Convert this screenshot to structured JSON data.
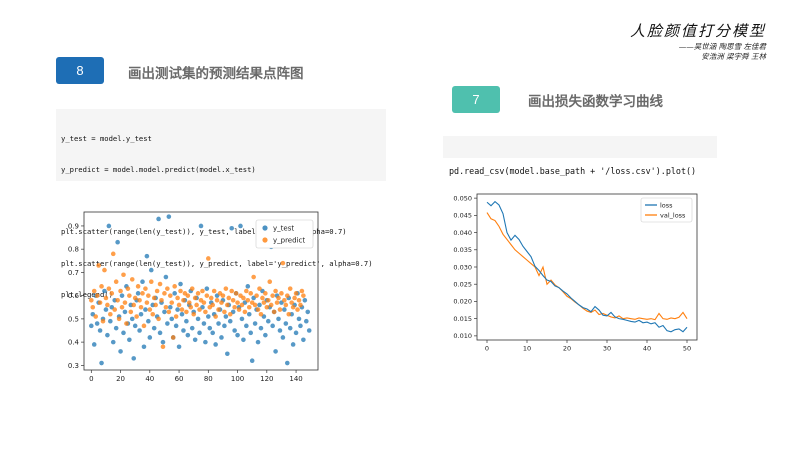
{
  "brand": {
    "title": "人脸颜值打分模型",
    "subtitle_line1": "——吴世涵 陶思雪 左佳君",
    "subtitle_line2": "安浩洲 梁宇舜 王林"
  },
  "section_scatter": {
    "number": "8",
    "title": "画出测试集的预测结果点阵图",
    "badge_color": "#1e6eb5",
    "code_lines": [
      "y_test = model.y_test",
      "y_predict = model.model.predict(model.x_test)",
      "",
      "plt.scatter(range(len(y_test)), y_test, label='y_test', alpha=0.7)",
      "plt.scatter(range(len(y_test)), y_predict, label='y_predict', alpha=0.7)",
      "plt.legend()"
    ]
  },
  "section_loss": {
    "number": "7",
    "title": "画出损失函数学习曲线",
    "badge_color": "#4fc0ae",
    "code_line": "pd.read_csv(model.base_path + '/loss.csv').plot()"
  },
  "chart_data": [
    {
      "type": "scatter",
      "title": "",
      "xlabel": "",
      "ylabel": "",
      "xlim": [
        -5,
        155
      ],
      "ylim": [
        0.28,
        0.96
      ],
      "x_ticks": [
        0,
        20,
        40,
        60,
        80,
        100,
        120,
        140
      ],
      "y_ticks": [
        0.3,
        0.4,
        0.5,
        0.6,
        0.7,
        0.8,
        0.9
      ],
      "legend_position": "top-right",
      "grid": false,
      "series": [
        {
          "name": "y_test",
          "color": "#1f77b4",
          "values": [
            0.47,
            0.52,
            0.39,
            0.6,
            0.48,
            0.57,
            0.45,
            0.31,
            0.5,
            0.62,
            0.54,
            0.43,
            0.9,
            0.49,
            0.55,
            0.4,
            0.58,
            0.46,
            0.83,
            0.51,
            0.36,
            0.6,
            0.44,
            0.53,
            0.64,
            0.48,
            0.41,
            0.56,
            0.5,
            0.33,
            0.47,
            0.58,
            0.61,
            0.45,
            0.52,
            0.66,
            0.38,
            0.54,
            0.77,
            0.49,
            0.42,
            0.71,
            0.56,
            0.46,
            0.59,
            0.51,
            0.93,
            0.44,
            0.57,
            0.4,
            0.53,
            0.68,
            0.48,
            0.94,
            0.55,
            0.5,
            0.42,
            0.61,
            0.47,
            0.54,
            0.38,
            0.65,
            0.52,
            0.45,
            0.58,
            0.49,
            0.43,
            0.56,
            0.62,
            0.46,
            0.53,
            0.41,
            0.59,
            0.5,
            0.44,
            0.9,
            0.55,
            0.48,
            0.4,
            0.63,
            0.51,
            0.46,
            0.57,
            0.44,
            0.52,
            0.39,
            0.6,
            0.48,
            0.54,
            0.42,
            0.58,
            0.47,
            0.51,
            0.35,
            0.56,
            0.49,
            0.89,
            0.53,
            0.45,
            0.61,
            0.43,
            0.55,
            0.9,
            0.5,
            0.41,
            0.57,
            0.47,
            0.64,
            0.52,
            0.44,
            0.32,
            0.59,
            0.48,
            0.54,
            0.4,
            0.56,
            0.46,
            0.62,
            0.51,
            0.43,
            0.58,
            0.49,
            0.55,
            0.81,
            0.47,
            0.53,
            0.36,
            0.6,
            0.5,
            0.45,
            0.57,
            0.42,
            0.54,
            0.48,
            0.31,
            0.59,
            0.46,
            0.52,
            0.39,
            0.56,
            0.44,
            0.61,
            0.5,
            0.47,
            0.55,
            0.41,
            0.58,
            0.49,
            0.53,
            0.45
          ]
        },
        {
          "name": "y_predict",
          "color": "#ff7f0e",
          "values": [
            0.58,
            0.55,
            0.62,
            0.51,
            0.6,
            0.73,
            0.57,
            0.64,
            0.49,
            0.71,
            0.59,
            0.56,
            0.63,
            0.52,
            0.61,
            0.78,
            0.54,
            0.66,
            0.58,
            0.5,
            0.62,
            0.55,
            0.69,
            0.57,
            0.48,
            0.63,
            0.6,
            0.53,
            0.67,
            0.56,
            0.59,
            0.51,
            0.64,
            0.58,
            0.55,
            0.61,
            0.47,
            0.63,
            0.57,
            0.6,
            0.54,
            0.66,
            0.52,
            0.59,
            0.56,
            0.62,
            0.5,
            0.65,
            0.58,
            0.38,
            0.61,
            0.55,
            0.63,
            0.53,
            0.6,
            0.57,
            0.42,
            0.64,
            0.51,
            0.59,
            0.56,
            0.62,
            0.54,
            0.58,
            0.61,
            0.53,
            0.6,
            0.57,
            0.55,
            0.63,
            0.52,
            0.59,
            0.56,
            0.61,
            0.54,
            0.58,
            0.62,
            0.57,
            0.53,
            0.6,
            0.76,
            0.55,
            0.59,
            0.56,
            0.62,
            0.51,
            0.58,
            0.54,
            0.61,
            0.57,
            0.6,
            0.53,
            0.63,
            0.56,
            0.59,
            0.52,
            0.62,
            0.58,
            0.55,
            0.61,
            0.57,
            0.54,
            0.6,
            0.56,
            0.59,
            0.53,
            0.62,
            0.58,
            0.55,
            0.61,
            0.57,
            0.68,
            0.56,
            0.6,
            0.54,
            0.63,
            0.52,
            0.59,
            0.57,
            0.61,
            0.55,
            0.58,
            0.66,
            0.56,
            0.6,
            0.53,
            0.62,
            0.57,
            0.59,
            0.54,
            0.61,
            0.74,
            0.58,
            0.56,
            0.6,
            0.52,
            0.63,
            0.57,
            0.55,
            0.59,
            0.61,
            0.54,
            0.58,
            0.56,
            0.62,
            0.6
          ]
        }
      ]
    },
    {
      "type": "line",
      "title": "",
      "xlabel": "",
      "ylabel": "",
      "xlim": [
        -2.5,
        52.5
      ],
      "ylim": [
        0.0088,
        0.0512
      ],
      "x_ticks": [
        0,
        10,
        20,
        30,
        40,
        50
      ],
      "y_ticks": [
        0.01,
        0.015,
        0.02,
        0.025,
        0.03,
        0.035,
        0.04,
        0.045,
        0.05
      ],
      "y_tick_labels": [
        "0.010",
        "0.015",
        "0.020",
        "0.025",
        "0.030",
        "0.035",
        "0.040",
        "0.045",
        "0.050"
      ],
      "legend_position": "top-right",
      "grid": false,
      "x": [
        0,
        1,
        2,
        3,
        4,
        5,
        6,
        7,
        8,
        9,
        10,
        11,
        12,
        13,
        14,
        15,
        16,
        17,
        18,
        19,
        20,
        21,
        22,
        23,
        24,
        25,
        26,
        27,
        28,
        29,
        30,
        31,
        32,
        33,
        34,
        35,
        36,
        37,
        38,
        39,
        40,
        41,
        42,
        43,
        44,
        45,
        46,
        47,
        48,
        49,
        50
      ],
      "series": [
        {
          "name": "loss",
          "color": "#1f77b4",
          "values": [
            0.0488,
            0.0478,
            0.049,
            0.048,
            0.0455,
            0.04,
            0.0378,
            0.0392,
            0.038,
            0.036,
            0.0345,
            0.033,
            0.0302,
            0.029,
            0.0275,
            0.0262,
            0.0258,
            0.0245,
            0.024,
            0.023,
            0.0222,
            0.021,
            0.02,
            0.019,
            0.0182,
            0.0178,
            0.017,
            0.0185,
            0.0175,
            0.016,
            0.0158,
            0.0168,
            0.0155,
            0.015,
            0.0148,
            0.0145,
            0.0142,
            0.014,
            0.0145,
            0.0138,
            0.014,
            0.0135,
            0.0138,
            0.0125,
            0.013,
            0.0115,
            0.0112,
            0.0118,
            0.012,
            0.0112,
            0.0125
          ]
        },
        {
          "name": "val_loss",
          "color": "#ff7f0e",
          "values": [
            0.0458,
            0.044,
            0.0435,
            0.0418,
            0.0395,
            0.038,
            0.0365,
            0.035,
            0.034,
            0.033,
            0.032,
            0.031,
            0.03,
            0.0275,
            0.03,
            0.025,
            0.0262,
            0.0248,
            0.024,
            0.0228,
            0.0215,
            0.0208,
            0.0198,
            0.019,
            0.018,
            0.0172,
            0.0168,
            0.0175,
            0.0162,
            0.0165,
            0.016,
            0.0155,
            0.0152,
            0.0158,
            0.015,
            0.0152,
            0.015,
            0.0148,
            0.0152,
            0.015,
            0.0148,
            0.015,
            0.0147,
            0.0165,
            0.015,
            0.0148,
            0.0152,
            0.015,
            0.0154,
            0.0168,
            0.015
          ]
        }
      ]
    }
  ]
}
